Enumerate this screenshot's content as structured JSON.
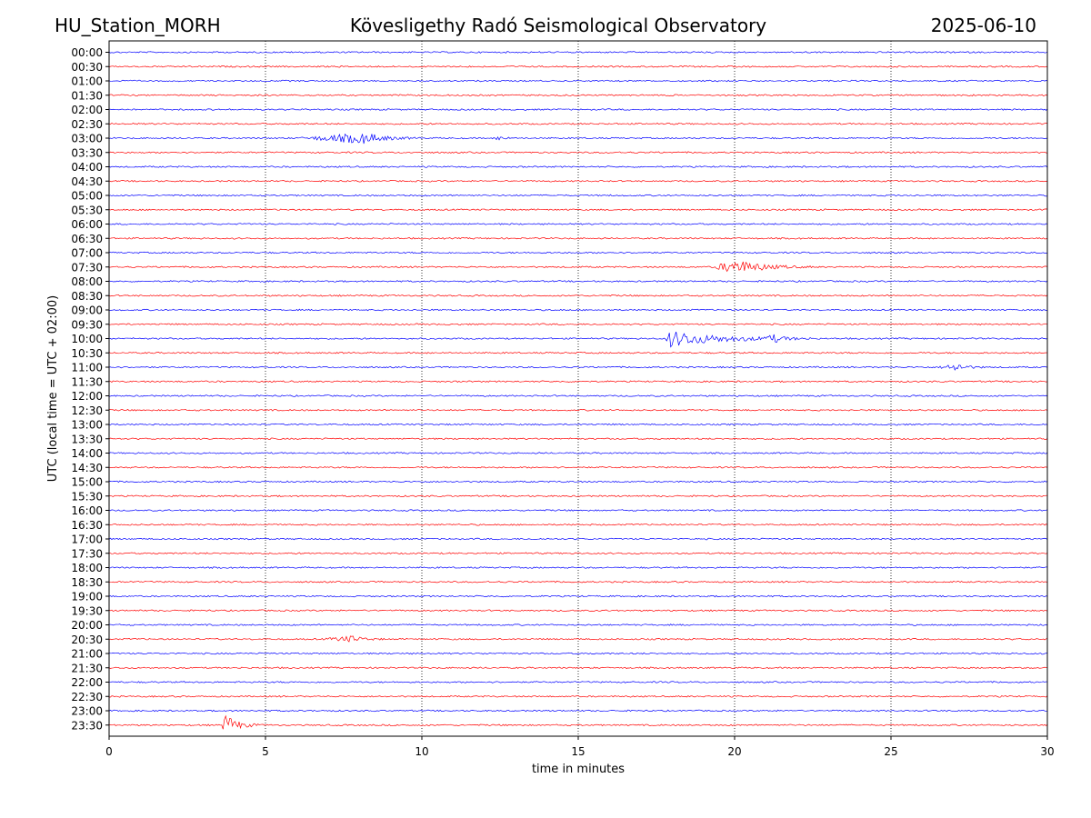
{
  "header": {
    "station": "HU_Station_MORH",
    "title": "Kövesligethy Radó Seismological Observatory",
    "date": "2025-06-10"
  },
  "chart_data": {
    "type": "line",
    "title": "Kövesligethy Radó Seismological Observatory",
    "xlabel": "time in minutes",
    "ylabel": "UTC (local time = UTC + 02:00)",
    "xlim": [
      0,
      30
    ],
    "x_ticks": [
      "0",
      "5",
      "10",
      "15",
      "20",
      "25",
      "30"
    ],
    "grid": "vertical dotted lines at x = 5, 10, 15, 20, 25",
    "colors": {
      "even_trace": "#0000ff",
      "odd_trace": "#ff0000",
      "grid": "#000000"
    },
    "rows": [
      "00:00",
      "00:30",
      "01:00",
      "01:30",
      "02:00",
      "02:30",
      "03:00",
      "03:30",
      "04:00",
      "04:30",
      "05:00",
      "05:30",
      "06:00",
      "06:30",
      "07:00",
      "07:30",
      "08:00",
      "08:30",
      "09:00",
      "09:30",
      "10:00",
      "10:30",
      "11:00",
      "11:30",
      "12:00",
      "12:30",
      "13:00",
      "13:30",
      "14:00",
      "14:30",
      "15:00",
      "15:30",
      "16:00",
      "16:30",
      "17:00",
      "17:30",
      "18:00",
      "18:30",
      "19:00",
      "19:30",
      "20:00",
      "20:30",
      "21:00",
      "21:30",
      "22:00",
      "22:30",
      "23:00",
      "23:30"
    ],
    "events": [
      {
        "row": "03:00",
        "start": 6.0,
        "end": 10.0,
        "peak": 8.2,
        "amplitude": 0.35
      },
      {
        "row": "03:00",
        "start": 12.3,
        "end": 12.9,
        "peak": 12.5,
        "amplitude": 0.15
      },
      {
        "row": "07:30",
        "start": 19.2,
        "end": 22.5,
        "peak": 20.1,
        "amplitude": 0.45
      },
      {
        "row": "10:00",
        "start": 17.8,
        "end": 22.5,
        "peak": 17.9,
        "amplitude": 0.55
      },
      {
        "row": "10:00",
        "start": 20.8,
        "end": 22.0,
        "peak": 21.3,
        "amplitude": 0.2
      },
      {
        "row": "11:00",
        "start": 26.5,
        "end": 28.0,
        "peak": 27.1,
        "amplitude": 0.25
      },
      {
        "row": "20:30",
        "start": 6.8,
        "end": 8.8,
        "peak": 7.8,
        "amplitude": 0.2
      },
      {
        "row": "23:30",
        "start": 3.6,
        "end": 4.8,
        "peak": 3.7,
        "amplitude": 0.75
      }
    ]
  }
}
